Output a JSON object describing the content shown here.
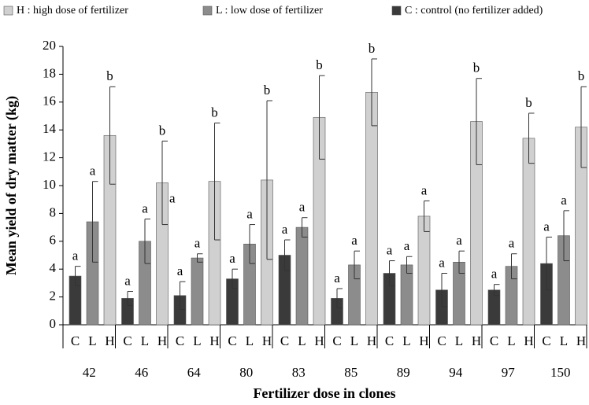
{
  "chart_data": {
    "type": "bar",
    "x_label": "Fertilizer dose in clones",
    "y_label": "Mean yield of dry matter (kg)",
    "categories": [
      "42",
      "46",
      "64",
      "80",
      "83",
      "85",
      "89",
      "94",
      "97",
      "150"
    ],
    "series": [
      {
        "name": "C : control (no fertilizer added)",
        "short": "C",
        "color": "#3a3a3a",
        "values": [
          3.5,
          1.9,
          2.1,
          3.3,
          5.0,
          1.9,
          3.7,
          2.5,
          2.5,
          4.4
        ],
        "errors": [
          0.7,
          0.5,
          1.0,
          0.7,
          1.1,
          0.7,
          0.9,
          1.2,
          0.4,
          1.9
        ],
        "letters": [
          "a",
          "a",
          "a",
          "a",
          "a",
          "a",
          "a",
          "a",
          "a",
          "a"
        ]
      },
      {
        "name": "L : low dose of fertilizer",
        "short": "L",
        "color": "#8c8c8c",
        "values": [
          7.4,
          6.0,
          4.8,
          5.8,
          7.0,
          4.3,
          4.3,
          4.5,
          4.2,
          6.4
        ],
        "errors": [
          2.9,
          1.6,
          0.3,
          1.4,
          0.7,
          1.0,
          0.6,
          0.8,
          0.9,
          1.8
        ],
        "letters": [
          "a",
          "a",
          "a",
          "a",
          "a",
          "a",
          "a",
          "a",
          "a",
          "a"
        ]
      },
      {
        "name": "H : high dose of fertilizer",
        "short": "H",
        "color": "#d0d0d0",
        "values": [
          13.6,
          10.2,
          10.3,
          10.4,
          14.9,
          16.7,
          7.8,
          14.6,
          13.4,
          14.2
        ],
        "errors": [
          3.5,
          3.0,
          4.2,
          5.7,
          3.0,
          2.4,
          1.1,
          3.1,
          1.8,
          2.9
        ],
        "letters": [
          "b",
          "b",
          "b",
          "b",
          "b",
          "b",
          "a",
          "b",
          "b",
          "b"
        ]
      }
    ],
    "annotations": [
      "a"
    ],
    "ylim": [
      0,
      20
    ],
    "yticks": [
      0,
      2,
      4,
      6,
      8,
      10,
      12,
      14,
      16,
      18,
      20
    ]
  }
}
